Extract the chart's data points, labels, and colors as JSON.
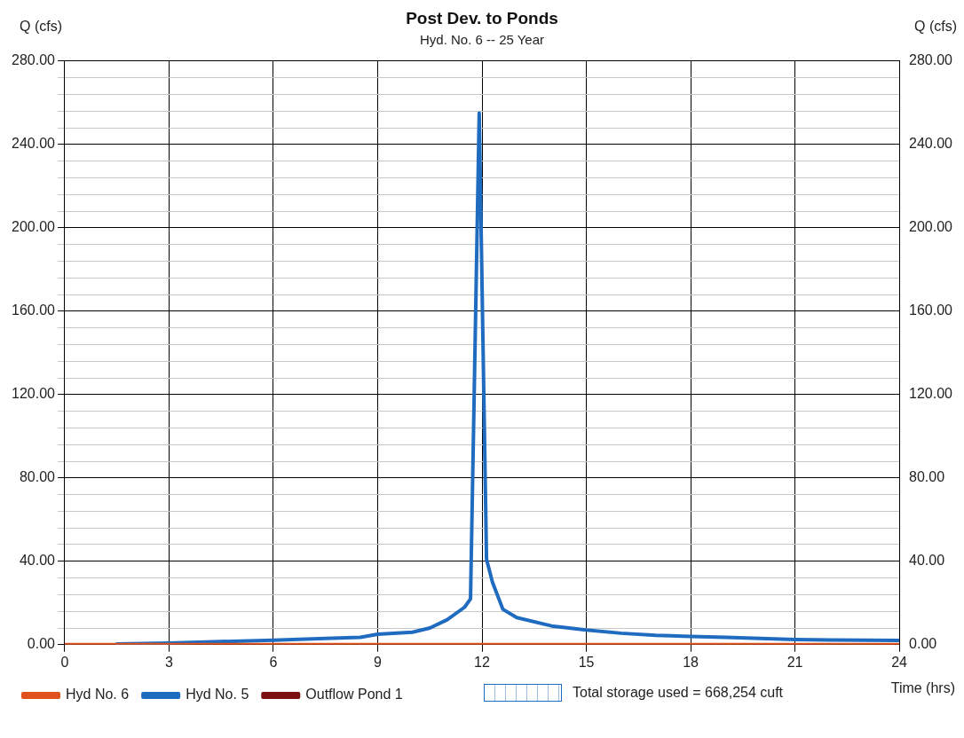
{
  "chart_data": {
    "type": "line",
    "title": "Post Dev. to Ponds",
    "subtitle": "Hyd. No. 6 -- 25 Year",
    "xlabel": "Time (hrs)",
    "ylabel": "Q (cfs)",
    "y2label": "Q (cfs)",
    "xlim": [
      0,
      24
    ],
    "xticks": [
      0,
      3,
      6,
      9,
      12,
      15,
      18,
      21,
      24
    ],
    "ylim": [
      0,
      280
    ],
    "yticks": [
      {
        "value": 0,
        "label": "0.00"
      },
      {
        "value": 8,
        "label": null
      },
      {
        "value": 16,
        "label": null
      },
      {
        "value": 24,
        "label": null
      },
      {
        "value": 32,
        "label": null
      },
      {
        "value": 40,
        "label": "40.00"
      },
      {
        "value": 48,
        "label": null
      },
      {
        "value": 56,
        "label": null
      },
      {
        "value": 64,
        "label": null
      },
      {
        "value": 72,
        "label": null
      },
      {
        "value": 80,
        "label": "80.00"
      },
      {
        "value": 88,
        "label": null
      },
      {
        "value": 96,
        "label": null
      },
      {
        "value": 104,
        "label": null
      },
      {
        "value": 112,
        "label": null
      },
      {
        "value": 120,
        "label": "120.00"
      },
      {
        "value": 128,
        "label": null
      },
      {
        "value": 136,
        "label": null
      },
      {
        "value": 144,
        "label": null
      },
      {
        "value": 152,
        "label": null
      },
      {
        "value": 160,
        "label": "160.00"
      },
      {
        "value": 168,
        "label": null
      },
      {
        "value": 176,
        "label": null
      },
      {
        "value": 184,
        "label": null
      },
      {
        "value": 192,
        "label": null
      },
      {
        "value": 200,
        "label": "200.00"
      },
      {
        "value": 208,
        "label": null
      },
      {
        "value": 216,
        "label": null
      },
      {
        "value": 224,
        "label": null
      },
      {
        "value": 232,
        "label": null
      },
      {
        "value": 240,
        "label": "240.00"
      },
      {
        "value": 248,
        "label": null
      },
      {
        "value": 256,
        "label": null
      },
      {
        "value": 264,
        "label": null
      },
      {
        "value": 272,
        "label": null
      },
      {
        "value": 280,
        "label": "280.00"
      }
    ],
    "y2lim": [
      0,
      280
    ],
    "y2ticks": [
      {
        "value": 0,
        "label": "0.00"
      },
      {
        "value": 40,
        "label": "40.00"
      },
      {
        "value": 80,
        "label": "80.00"
      },
      {
        "value": 120,
        "label": "120.00"
      },
      {
        "value": 160,
        "label": "160.00"
      },
      {
        "value": 200,
        "label": "200.00"
      },
      {
        "value": 240,
        "label": "240.00"
      },
      {
        "value": 280,
        "label": "280.00"
      }
    ],
    "grid": true,
    "legend": "bottom",
    "marker": "none",
    "annotations": [
      "Total storage used = 668,254 cuft"
    ],
    "series": [
      {
        "name": "Hyd No. 6",
        "color": "#e0531f",
        "x": [
          0,
          24
        ],
        "values": [
          0,
          0
        ]
      },
      {
        "name": "Hyd No. 5",
        "color": "#1f6bc0",
        "x": [
          1.5,
          3,
          4.5,
          6,
          7.5,
          8.5,
          9,
          10,
          10.5,
          11,
          11.5,
          11.67,
          11.92,
          12.13,
          12.3,
          12.6,
          13,
          14,
          15,
          16,
          17,
          18,
          19,
          20,
          21,
          22,
          23,
          24
        ],
        "values": [
          0.3,
          0.8,
          1.5,
          2.2,
          3,
          3.5,
          5,
          6,
          8,
          12,
          18,
          22,
          255,
          41,
          30,
          17,
          13,
          9,
          7,
          5.5,
          4.5,
          4,
          3.5,
          3,
          2.5,
          2.3,
          2.2,
          2
        ]
      },
      {
        "name": "Outflow Pond 1",
        "color": "#7b1010"
      }
    ]
  }
}
